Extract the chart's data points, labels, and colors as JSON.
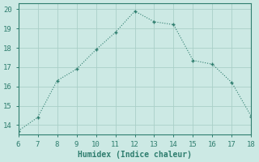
{
  "xlabel": "Humidex (Indice chaleur)",
  "x": [
    6,
    7,
    8,
    9,
    10,
    11,
    12,
    13,
    14,
    15,
    16,
    17,
    18
  ],
  "y": [
    13.7,
    14.4,
    16.3,
    16.9,
    17.9,
    18.8,
    19.9,
    19.35,
    19.2,
    17.35,
    17.15,
    16.2,
    14.45
  ],
  "xlim": [
    6,
    18
  ],
  "ylim": [
    13.5,
    20.3
  ],
  "xticks": [
    6,
    7,
    8,
    9,
    10,
    11,
    12,
    13,
    14,
    15,
    16,
    17,
    18
  ],
  "yticks": [
    14,
    15,
    16,
    17,
    18,
    19,
    20
  ],
  "line_color": "#2e7d6e",
  "bg_color": "#cce9e4",
  "grid_color": "#aacfc8",
  "marker": "+"
}
